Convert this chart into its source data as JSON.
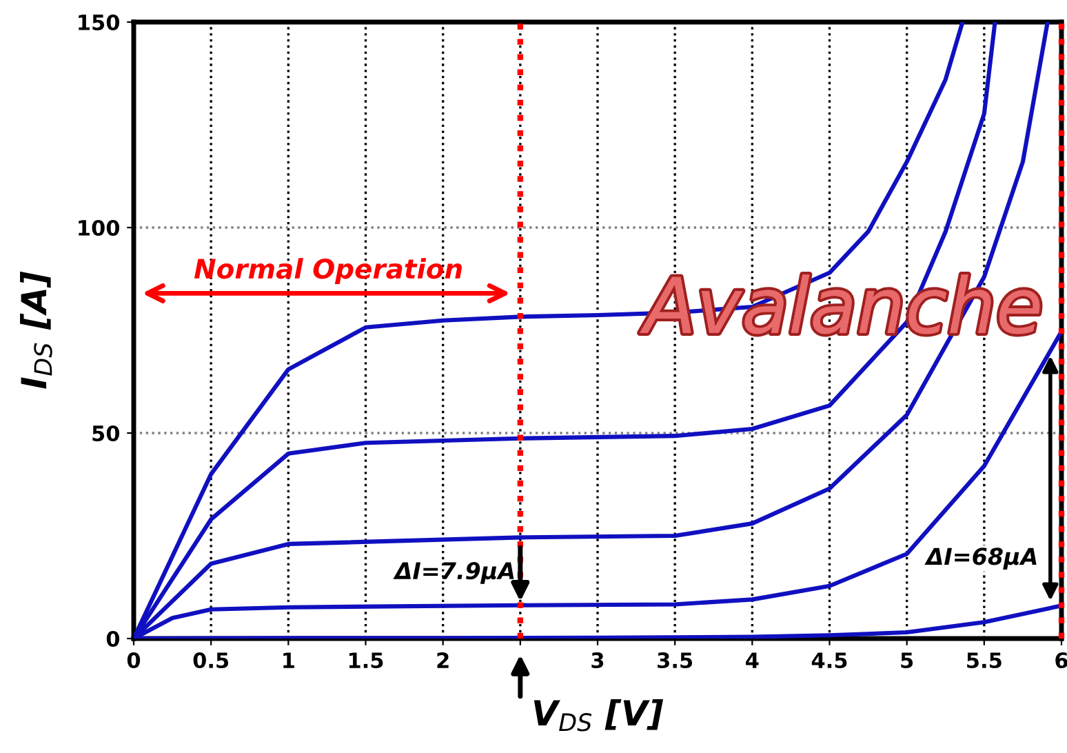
{
  "chart_data": {
    "type": "line",
    "xlabel": "V$_{DS}$ [V]",
    "ylabel": "I$_{DS}$ [A]",
    "xlim": [
      0,
      6
    ],
    "ylim": [
      0,
      150
    ],
    "xticks": [
      0,
      0.5,
      1,
      1.5,
      2,
      {
        "value": 2.5,
        "label": null
      },
      3,
      3.5,
      4,
      4.5,
      5,
      5.5,
      6
    ],
    "yticks": [
      0,
      50,
      100,
      150
    ],
    "grid": true,
    "line_style": "solid",
    "marker": "none",
    "series": [
      {
        "color": "#1010c0",
        "x": [
          0,
          0.5,
          1,
          1.5,
          2,
          2.5,
          3,
          3.5,
          4,
          4.5,
          4.75,
          5,
          5.25,
          5.36
        ],
        "values": [
          0,
          40,
          65.5,
          75.7,
          77.4,
          78.3,
          78.7,
          79.3,
          80.7,
          89,
          99,
          116,
          136,
          150
        ]
      },
      {
        "color": "#1010c0",
        "x": [
          0,
          0.5,
          1,
          1.5,
          2.5,
          3.5,
          4,
          4.5,
          5,
          5.25,
          5.5,
          5.57
        ],
        "values": [
          0,
          29,
          45,
          47.6,
          48.7,
          49.3,
          51,
          56.7,
          77,
          99,
          127.7,
          150
        ]
      },
      {
        "color": "#1010c0",
        "x": [
          0,
          0.5,
          1,
          2.5,
          3.5,
          4,
          4.5,
          5,
          5.5,
          5.75,
          5.91
        ],
        "values": [
          0,
          18.2,
          23,
          24.6,
          25,
          28,
          36.5,
          54.4,
          88,
          116,
          150
        ]
      },
      {
        "color": "#1010c0",
        "x": [
          0,
          0.25,
          0.5,
          1,
          2.5,
          3.5,
          4,
          4.5,
          5,
          5.5,
          6
        ],
        "values": [
          0,
          5,
          7.1,
          7.6,
          8.1,
          8.3,
          9.5,
          12.8,
          20.6,
          42,
          74.7
        ]
      },
      {
        "color": "#1010c0",
        "x": [
          0,
          1,
          2,
          3,
          4,
          4.5,
          5,
          5.5,
          6
        ],
        "values": [
          0,
          0.1,
          0.1,
          0.2,
          0.4,
          0.8,
          1.5,
          4,
          8
        ]
      }
    ],
    "ref_lines": [
      {
        "axis": "x",
        "value": 2.5,
        "label": null,
        "color": "#ff0000",
        "line_style": "dotted"
      },
      {
        "axis": "x",
        "value": 6,
        "label": null,
        "color": "#ff0000",
        "line_style": "dotted"
      }
    ],
    "annotations": [
      "Normal Operation",
      "Avalanche",
      {
        "text": "ΔI=7.9μA",
        "x": 2.5,
        "y": 16
      },
      "ΔI=68μA"
    ]
  }
}
